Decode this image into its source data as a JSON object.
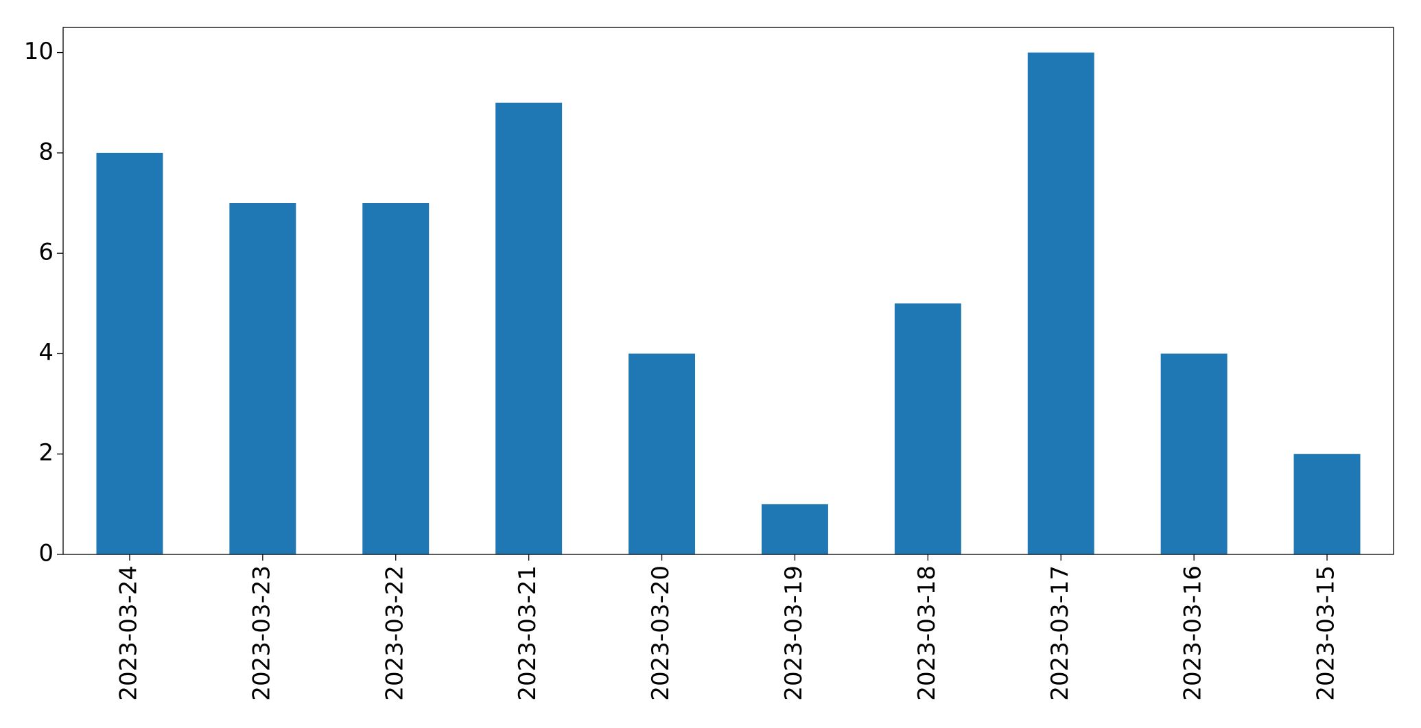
{
  "chart_data": {
    "type": "bar",
    "categories": [
      "2023-03-24",
      "2023-03-23",
      "2023-03-22",
      "2023-03-21",
      "2023-03-20",
      "2023-03-19",
      "2023-03-18",
      "2023-03-17",
      "2023-03-16",
      "2023-03-15"
    ],
    "values": [
      8,
      7,
      7,
      9,
      4,
      1,
      5,
      10,
      4,
      2
    ],
    "color": "#1f77b4",
    "ylim": [
      0,
      10.5
    ],
    "yticks": [
      0,
      2,
      4,
      6,
      8,
      10
    ],
    "grid": false
  }
}
